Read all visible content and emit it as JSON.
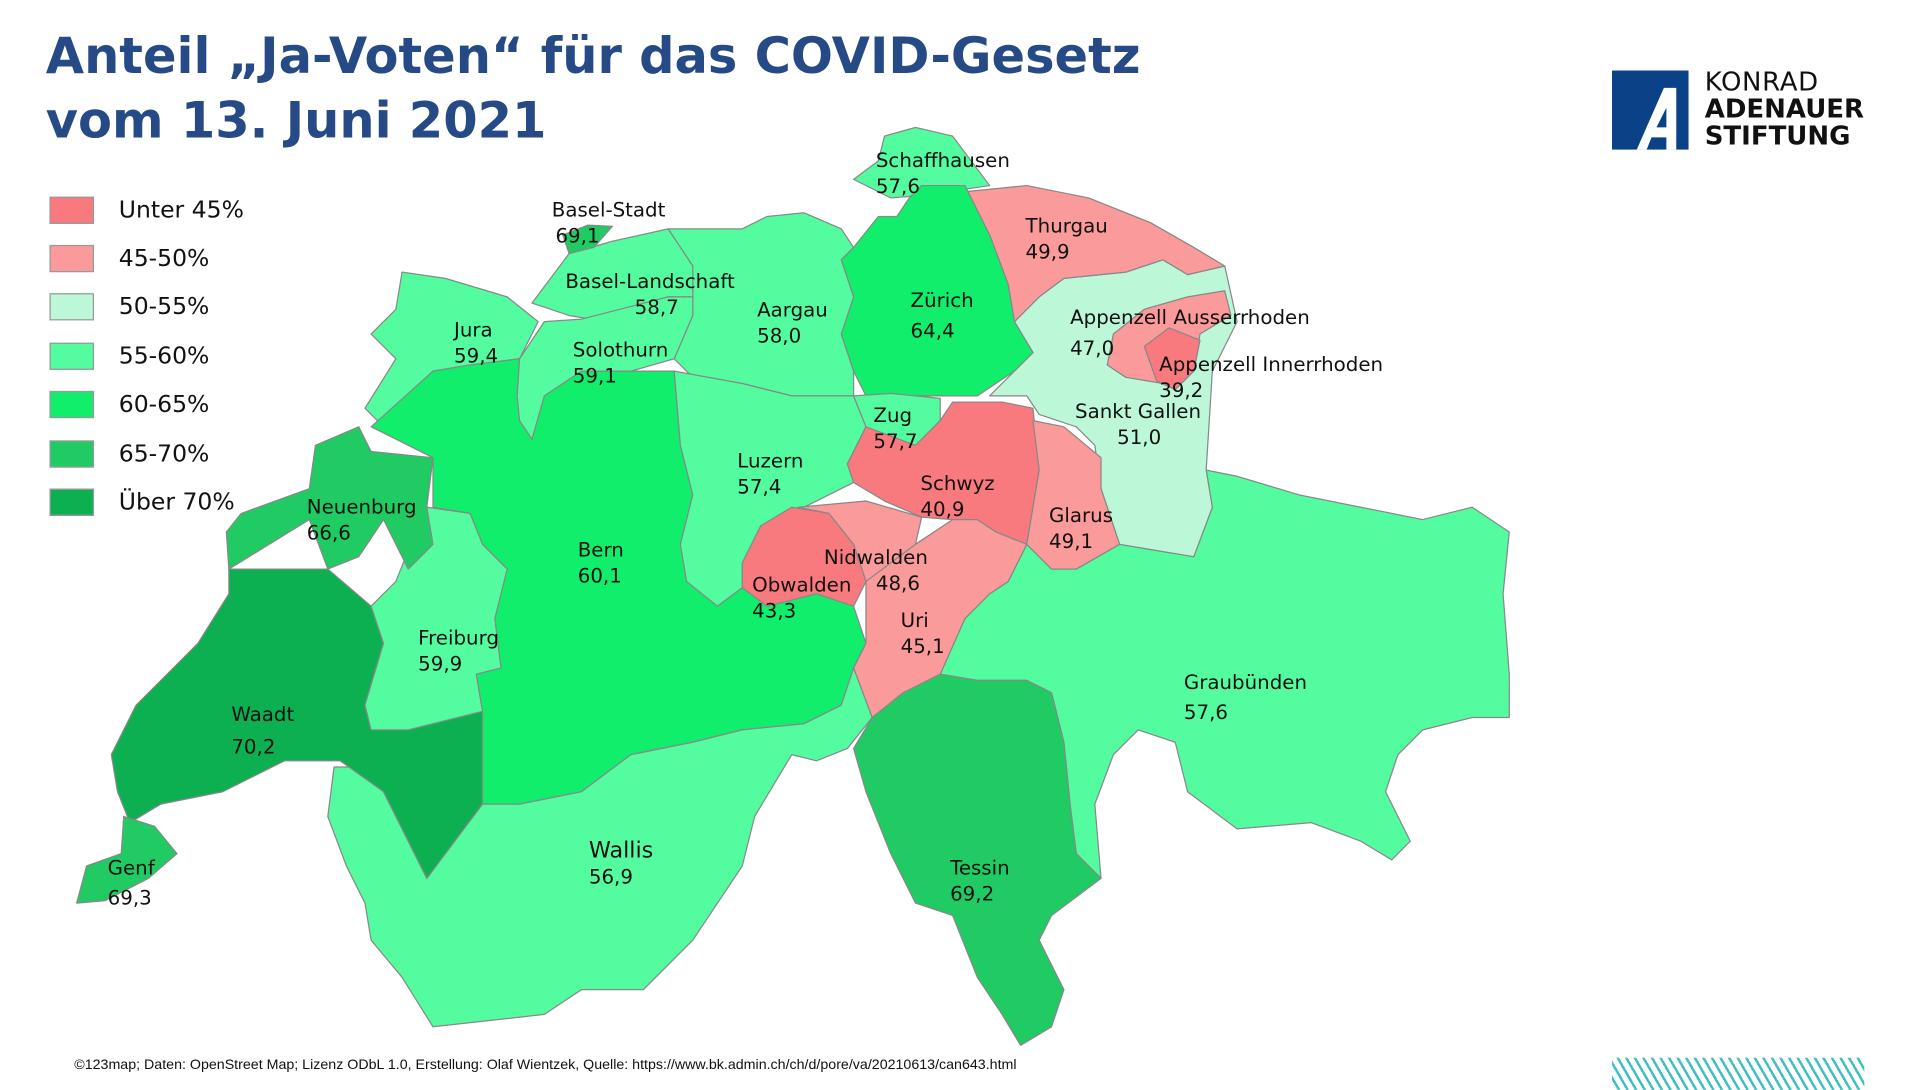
{
  "title": {
    "line1": "Anteil „Ja-Voten“ für das COVID-Gesetz",
    "line2": "vom 13. Juni 2021"
  },
  "logo": {
    "line1": "KONRAD",
    "line2": "ADENAUER",
    "line3": "STIFTUNG"
  },
  "colors": {
    "under45": "#f87a7e",
    "45-50": "#fb9a9a",
    "50-55": "#bcf8d8",
    "55-60": "#53fd9f",
    "60-65": "#10ee6b",
    "65-70": "#1fcb62",
    "over70": "#0cb050",
    "title": "#254a85"
  },
  "legend": [
    {
      "key": "under45",
      "label": "Unter 45%"
    },
    {
      "key": "45-50",
      "label": "45-50%"
    },
    {
      "key": "50-55",
      "label": "50-55%"
    },
    {
      "key": "55-60",
      "label": "55-60%"
    },
    {
      "key": "60-65",
      "label": "60-65%"
    },
    {
      "key": "65-70",
      "label": "65-70%"
    },
    {
      "key": "over70",
      "label": "Über 70%"
    }
  ],
  "cantons": {
    "genf": {
      "name": "Genf",
      "value": "69,3",
      "key": "65-70"
    },
    "waadt": {
      "name": "Waadt",
      "value": "70,2",
      "key": "over70"
    },
    "neuenburg": {
      "name": "Neuenburg",
      "value": "66,6",
      "key": "65-70"
    },
    "jura": {
      "name": "Jura",
      "value": "59,4",
      "key": "55-60"
    },
    "baselstadt": {
      "name": "Basel-Stadt",
      "value": "69,1",
      "key": "65-70"
    },
    "basellandschaft": {
      "name": "Basel-Landschaft",
      "value": "58,7",
      "key": "55-60"
    },
    "solothurn": {
      "name": "Solothurn",
      "value": "59,1",
      "key": "55-60"
    },
    "aargau": {
      "name": "Aargau",
      "value": "58,0",
      "key": "55-60"
    },
    "zuerich": {
      "name": "Zürich",
      "value": "64,4",
      "key": "60-65"
    },
    "schaffhausen": {
      "name": "Schaffhausen",
      "value": "57,6",
      "key": "55-60"
    },
    "thurgau": {
      "name": "Thurgau",
      "value": "49,9",
      "key": "45-50"
    },
    "appenzellar": {
      "name": "Appenzell Ausserrhoden",
      "value": "47,0",
      "key": "45-50"
    },
    "appenzellir": {
      "name": "Appenzell Innerrhoden",
      "value": "39,2",
      "key": "under45"
    },
    "stgallen": {
      "name": "Sankt Gallen",
      "value": "51,0",
      "key": "50-55"
    },
    "zug": {
      "name": "Zug",
      "value": "57,7",
      "key": "55-60"
    },
    "schwyz": {
      "name": "Schwyz",
      "value": "40,9",
      "key": "under45"
    },
    "glarus": {
      "name": "Glarus",
      "value": "49,1",
      "key": "45-50"
    },
    "luzern": {
      "name": "Luzern",
      "value": "57,4",
      "key": "55-60"
    },
    "nidwalden": {
      "name": "Nidwalden",
      "value": "48,6",
      "key": "45-50"
    },
    "obwalden": {
      "name": "Obwalden",
      "value": "43,3",
      "key": "under45"
    },
    "uri": {
      "name": "Uri",
      "value": "45,1",
      "key": "45-50"
    },
    "bern": {
      "name": "Bern",
      "value": "60,1",
      "key": "60-65"
    },
    "freiburg": {
      "name": "Freiburg",
      "value": "59,9",
      "key": "55-60"
    },
    "wallis": {
      "name": "Wallis",
      "value": "56,9",
      "key": "55-60"
    },
    "tessin": {
      "name": "Tessin",
      "value": "69,2",
      "key": "65-70"
    },
    "graubuenden": {
      "name": "Graubünden",
      "value": "57,6",
      "key": "55-60"
    }
  },
  "footer": "©123map; Daten: OpenStreet Map; Lizenz ODbL 1.0, Erstellung: Olaf Wientzek, Quelle: https://www.bk.admin.ch/ch/d/pore/va/20210613/can643.html"
}
